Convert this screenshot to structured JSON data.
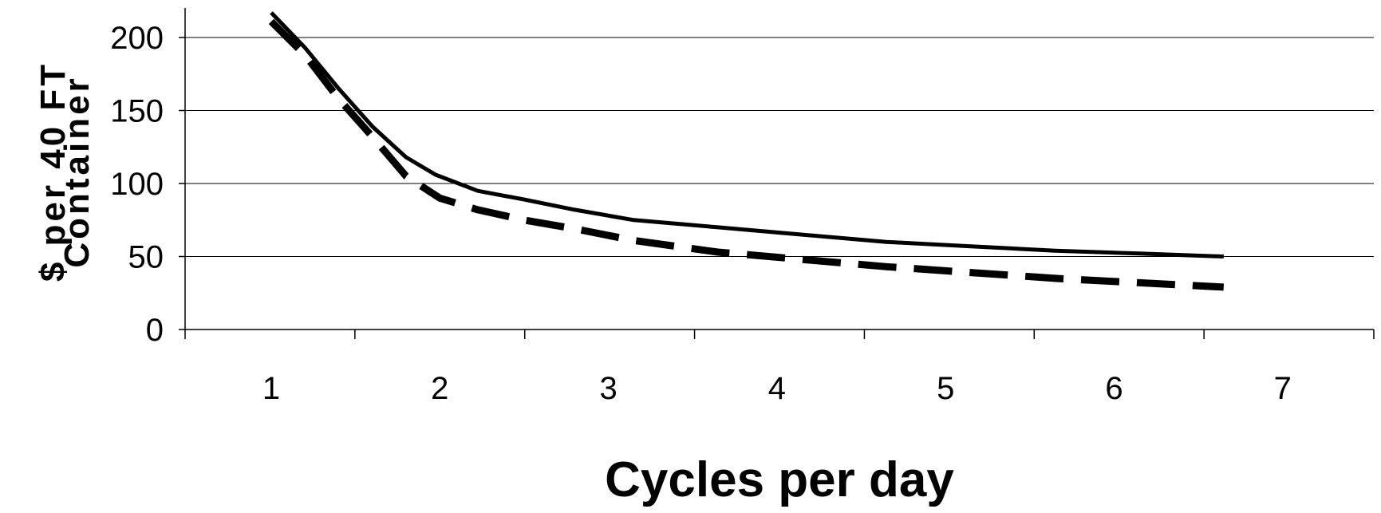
{
  "chart_data": {
    "type": "line",
    "title": "",
    "xlabel": "Cycles per day",
    "ylabel_lines": [
      "$ per 40 FT",
      "Container"
    ],
    "categories": [
      "1",
      "2",
      "3",
      "4",
      "5",
      "6",
      "7"
    ],
    "ylim": [
      0,
      200
    ],
    "yticks": [
      0,
      50,
      100,
      150,
      200
    ],
    "grid": "horizontal",
    "legend": "none",
    "series": [
      {
        "style": "solid",
        "color": "#000000",
        "points": [
          [
            1.0,
            217
          ],
          [
            1.4,
            193
          ],
          [
            1.8,
            165
          ],
          [
            2.2,
            139
          ],
          [
            2.6,
            118
          ],
          [
            2.95,
            106
          ],
          [
            3.45,
            95
          ],
          [
            4.0,
            89
          ],
          [
            4.6,
            82
          ],
          [
            5.3,
            75
          ],
          [
            6.3,
            70
          ],
          [
            7.3,
            65
          ],
          [
            8.3,
            60
          ],
          [
            9.3,
            57
          ],
          [
            10.3,
            54
          ],
          [
            11.3,
            52
          ],
          [
            12.3,
            50
          ]
        ]
      },
      {
        "style": "dashed",
        "color": "#000000",
        "points": [
          [
            1.0,
            211
          ],
          [
            1.4,
            188
          ],
          [
            1.8,
            158
          ],
          [
            2.2,
            132
          ],
          [
            2.6,
            105
          ],
          [
            3.0,
            90
          ],
          [
            3.45,
            82
          ],
          [
            4.0,
            75
          ],
          [
            4.6,
            69
          ],
          [
            5.3,
            61
          ],
          [
            6.3,
            53
          ],
          [
            7.3,
            48
          ],
          [
            8.3,
            43
          ],
          [
            9.3,
            39
          ],
          [
            10.3,
            35
          ],
          [
            11.3,
            32
          ],
          [
            12.3,
            29
          ]
        ]
      }
    ]
  }
}
